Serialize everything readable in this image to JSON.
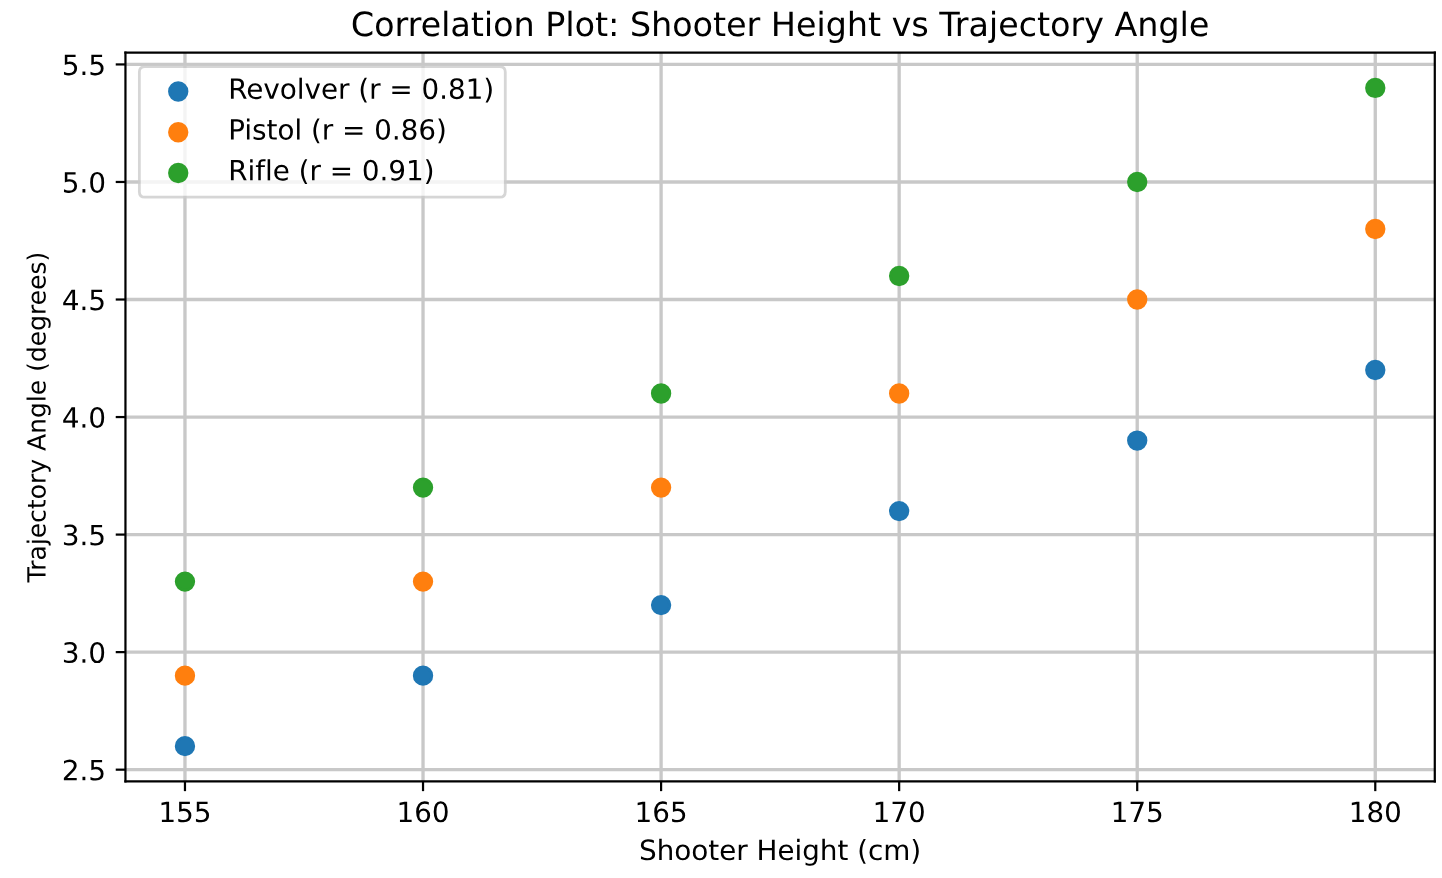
{
  "chart_data": {
    "type": "scatter",
    "title": "Correlation Plot: Shooter Height vs Trajectory Angle",
    "xlabel": "Shooter Height (cm)",
    "ylabel": "Trajectory Angle (degrees)",
    "x": [
      155,
      160,
      165,
      170,
      175,
      180
    ],
    "series": [
      {
        "name": "Revolver (r = 0.81)",
        "color": "#1f77b4",
        "values": [
          2.6,
          2.9,
          3.2,
          3.6,
          3.9,
          4.2
        ]
      },
      {
        "name": "Pistol (r = 0.86)",
        "color": "#ff7f0e",
        "values": [
          2.9,
          3.3,
          3.7,
          4.1,
          4.5,
          4.8
        ]
      },
      {
        "name": "Rifle (r = 0.91)",
        "color": "#2ca02c",
        "values": [
          3.3,
          3.7,
          4.1,
          4.6,
          5.0,
          5.4
        ]
      }
    ],
    "xlim": [
      153.75,
      181.25
    ],
    "ylim": [
      2.45,
      5.55
    ],
    "xticks": [
      155,
      160,
      165,
      170,
      175,
      180
    ],
    "yticks": [
      {
        "value": 2.5,
        "label": "2.5"
      },
      {
        "value": 3.0,
        "label": "3.0"
      },
      {
        "value": 3.5,
        "label": "3.5"
      },
      {
        "value": 4.0,
        "label": "4.0"
      },
      {
        "value": 4.5,
        "label": "4.5"
      },
      {
        "value": 5.0,
        "label": "5.0"
      },
      {
        "value": 5.5,
        "label": "5.5"
      }
    ],
    "grid": true,
    "legend": "top left",
    "marker": "circle"
  }
}
